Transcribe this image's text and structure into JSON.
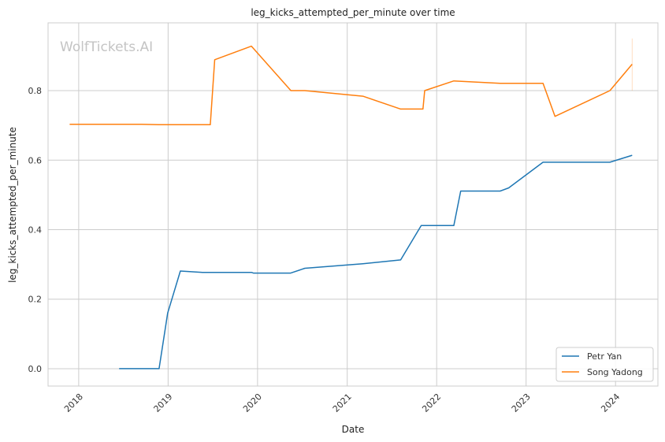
{
  "chart_data": {
    "type": "line",
    "title": "leg_kicks_attempted_per_minute over time",
    "xlabel": "Date",
    "ylabel": "leg_kicks_attempted_per_minute",
    "watermark": "WolfTickets.AI",
    "x_ticks": [
      "2018",
      "2019",
      "2020",
      "2021",
      "2022",
      "2023",
      "2024"
    ],
    "y_ticks": [
      "0.0",
      "0.2",
      "0.4",
      "0.6",
      "0.8"
    ],
    "xlim": [
      "2017-08-29",
      "2024-06-22"
    ],
    "ylim": [
      -0.05,
      0.995
    ],
    "grid": true,
    "legend_position": "lower-right",
    "series": [
      {
        "name": "Petr Yan",
        "color": "#1f77b4",
        "points": [
          [
            "2018-06-15",
            0.0
          ],
          [
            "2018-11-25",
            0.0
          ],
          [
            "2018-12-30",
            0.16
          ],
          [
            "2019-02-20",
            0.281
          ],
          [
            "2019-05-20",
            0.277
          ],
          [
            "2019-12-07",
            0.277
          ],
          [
            "2019-12-15",
            0.275
          ],
          [
            "2020-05-15",
            0.275
          ],
          [
            "2020-07-12",
            0.289
          ],
          [
            "2021-03-06",
            0.302
          ],
          [
            "2021-08-07",
            0.313
          ],
          [
            "2021-10-30",
            0.412
          ],
          [
            "2022-03-12",
            0.412
          ],
          [
            "2022-04-09",
            0.511
          ],
          [
            "2022-09-17",
            0.511
          ],
          [
            "2022-10-22",
            0.52
          ],
          [
            "2023-03-11",
            0.594
          ],
          [
            "2023-12-09",
            0.594
          ],
          [
            "2024-03-09",
            0.614
          ]
        ]
      },
      {
        "name": "Song Yadong",
        "color": "#ff7f0e",
        "points": [
          [
            "2017-11-25",
            0.703
          ],
          [
            "2018-09-15",
            0.703
          ],
          [
            "2018-11-24",
            0.702
          ],
          [
            "2019-06-22",
            0.702
          ],
          [
            "2019-07-10",
            0.889
          ],
          [
            "2019-12-07",
            0.928
          ],
          [
            "2020-05-16",
            0.8
          ],
          [
            "2020-07-12",
            0.8
          ],
          [
            "2021-03-06",
            0.784
          ],
          [
            "2021-08-07",
            0.747
          ],
          [
            "2021-11-06",
            0.747
          ],
          [
            "2021-11-13",
            0.8
          ],
          [
            "2022-03-12",
            0.828
          ],
          [
            "2022-09-17",
            0.821
          ],
          [
            "2023-03-11",
            0.821
          ],
          [
            "2023-04-29",
            0.726
          ],
          [
            "2023-12-09",
            0.8
          ],
          [
            "2024-03-09",
            0.876
          ]
        ]
      }
    ]
  }
}
